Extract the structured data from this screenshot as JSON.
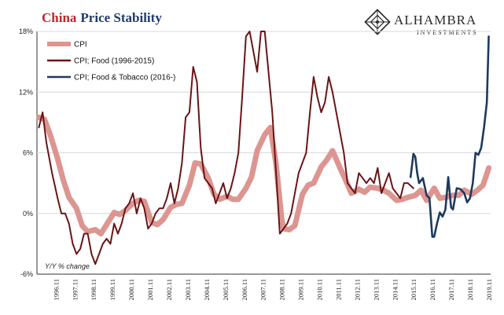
{
  "title": {
    "part1": "China",
    "part2": "Price Stability"
  },
  "brand": {
    "name": "ALHAMBRA",
    "sub": "INVESTMENTS"
  },
  "colors": {
    "cpi": "#dc9590",
    "food": "#6b1416",
    "foodtobacco": "#1c3a5e",
    "title_red": "#c0262c",
    "title_blue": "#1f3b6e"
  },
  "chart_data": {
    "type": "line",
    "ylabel_note": "Y/Y % change",
    "ylim": [
      -6,
      18
    ],
    "y_ticks": [
      "18%",
      "12%",
      "6%",
      "0%",
      "-6%"
    ],
    "y_tick_values": [
      18,
      12,
      6,
      0,
      -6
    ],
    "x_tick_labels": [
      "1996.11",
      "1997.11",
      "1998.11",
      "1999.11",
      "2000.11",
      "2001.11",
      "2002.11",
      "2003.11",
      "2004.11",
      "2005.11",
      "2006.11",
      "2007.11",
      "2008.11",
      "2009.11",
      "2010.11",
      "2011.11",
      "2012.11",
      "2013.11",
      "2014.11",
      "2015.11",
      "2016.11",
      "2017.11",
      "2018.11",
      "2019.11"
    ],
    "x_tick_values": [
      1996.917,
      1997.917,
      1998.917,
      1999.917,
      2000.917,
      2001.917,
      2002.917,
      2003.917,
      2004.917,
      2005.917,
      2006.917,
      2007.917,
      2008.917,
      2009.917,
      2010.917,
      2011.917,
      2012.917,
      2013.917,
      2014.917,
      2015.917,
      2016.917,
      2017.917,
      2018.917,
      2019.917
    ],
    "xlim": [
      1995.9,
      2020.0
    ],
    "legend": [
      {
        "label": "CPI",
        "key": "cpi"
      },
      {
        "label": "CPI; Food (1996-2015)",
        "key": "food"
      },
      {
        "label": "CPI; Food & Tobacco (2016-)",
        "key": "foodtobacco"
      }
    ],
    "series": [
      {
        "name": "CPI",
        "key": "cpi",
        "x": [
          1996.0,
          1996.3,
          1996.6,
          1997.0,
          1997.3,
          1997.6,
          1998.0,
          1998.3,
          1998.6,
          1999.0,
          1999.3,
          1999.6,
          2000.0,
          2000.3,
          2000.6,
          2001.0,
          2001.3,
          2001.6,
          2002.0,
          2002.3,
          2002.6,
          2003.0,
          2003.3,
          2003.6,
          2004.0,
          2004.3,
          2004.6,
          2005.0,
          2005.3,
          2005.6,
          2006.0,
          2006.3,
          2006.6,
          2007.0,
          2007.3,
          2007.6,
          2008.0,
          2008.3,
          2008.6,
          2008.9,
          2009.0,
          2009.3,
          2009.6,
          2010.0,
          2010.3,
          2010.6,
          2011.0,
          2011.3,
          2011.6,
          2012.0,
          2012.3,
          2012.6,
          2013.0,
          2013.3,
          2013.6,
          2014.0,
          2014.3,
          2014.6,
          2015.0,
          2015.3,
          2015.6,
          2016.0,
          2016.3,
          2016.6,
          2017.0,
          2017.3,
          2017.6,
          2018.0,
          2018.3,
          2018.6,
          2019.0,
          2019.3,
          2019.6,
          2019.9
        ],
        "y": [
          9.5,
          9.3,
          7.8,
          5.4,
          3.3,
          1.6,
          0.5,
          -1.2,
          -1.8,
          -1.6,
          -2.0,
          -1.1,
          0.1,
          -0.1,
          0.3,
          1.0,
          1.3,
          1.2,
          -0.9,
          -1.1,
          -0.6,
          0.6,
          0.9,
          1.0,
          2.8,
          5.0,
          4.9,
          3.5,
          1.9,
          1.4,
          1.7,
          1.4,
          1.4,
          2.5,
          3.6,
          6.2,
          7.8,
          8.5,
          4.9,
          -0.5,
          -1.5,
          -1.6,
          -1.2,
          1.9,
          2.8,
          3.0,
          4.6,
          5.3,
          6.2,
          4.5,
          3.3,
          2.0,
          2.4,
          2.1,
          2.6,
          2.5,
          2.3,
          2.0,
          1.3,
          1.4,
          1.6,
          1.8,
          2.3,
          1.3,
          2.5,
          1.5,
          1.6,
          1.8,
          1.8,
          2.3,
          1.9,
          2.3,
          2.8,
          4.5
        ]
      },
      {
        "name": "CPI; Food (1996-2015)",
        "key": "food",
        "x": [
          1996.0,
          1996.2,
          1996.4,
          1996.7,
          1997.0,
          1997.2,
          1997.4,
          1997.6,
          1997.8,
          1998.0,
          1998.2,
          1998.4,
          1998.6,
          1998.8,
          1999.0,
          1999.2,
          1999.4,
          1999.6,
          1999.8,
          2000.0,
          2000.2,
          2000.4,
          2000.6,
          2000.8,
          2001.0,
          2001.2,
          2001.4,
          2001.6,
          2001.8,
          2002.0,
          2002.2,
          2002.4,
          2002.6,
          2002.8,
          2003.0,
          2003.2,
          2003.4,
          2003.6,
          2003.8,
          2004.0,
          2004.2,
          2004.4,
          2004.6,
          2004.8,
          2005.0,
          2005.2,
          2005.4,
          2005.6,
          2005.8,
          2006.0,
          2006.2,
          2006.4,
          2006.6,
          2006.8,
          2007.0,
          2007.2,
          2007.4,
          2007.6,
          2007.8,
          2008.0,
          2008.2,
          2008.4,
          2008.6,
          2008.8,
          2009.0,
          2009.2,
          2009.4,
          2009.6,
          2009.8,
          2010.0,
          2010.2,
          2010.4,
          2010.6,
          2010.8,
          2011.0,
          2011.2,
          2011.4,
          2011.6,
          2011.8,
          2012.0,
          2012.2,
          2012.4,
          2012.6,
          2012.8,
          2013.0,
          2013.2,
          2013.4,
          2013.6,
          2013.8,
          2014.0,
          2014.2,
          2014.4,
          2014.6,
          2014.8,
          2015.0,
          2015.2,
          2015.4,
          2015.6,
          2015.9
        ],
        "y": [
          8.5,
          10.0,
          7.0,
          4.0,
          1.5,
          0.0,
          0.0,
          -1.0,
          -3.0,
          -4.0,
          -3.5,
          -2.0,
          -2.0,
          -4.0,
          -5.0,
          -4.0,
          -3.0,
          -2.5,
          -3.0,
          -1.0,
          -2.0,
          -1.0,
          0.5,
          1.0,
          2.0,
          0.0,
          1.5,
          0.5,
          -1.5,
          -1.0,
          0.0,
          0.5,
          0.5,
          1.5,
          3.0,
          1.0,
          2.5,
          5.0,
          9.5,
          10.0,
          14.5,
          13.0,
          6.5,
          3.5,
          3.0,
          2.5,
          1.0,
          2.0,
          3.0,
          1.5,
          2.5,
          4.0,
          6.0,
          11.5,
          17.5,
          18.0,
          16.0,
          14.0,
          18.0,
          20.0,
          14.0,
          10.0,
          4.0,
          -2.0,
          -1.5,
          -1.0,
          0.0,
          2.0,
          4.0,
          5.0,
          6.0,
          10.0,
          13.5,
          11.5,
          10.0,
          11.0,
          13.5,
          12.0,
          10.0,
          8.0,
          6.0,
          3.0,
          2.5,
          2.0,
          4.0,
          3.5,
          3.0,
          3.5,
          3.0,
          4.5,
          2.0,
          3.0,
          4.0,
          2.5,
          2.0,
          1.5,
          3.0,
          3.0,
          2.5
        ]
      },
      {
        "name": "CPI; Food & Tobacco (2016-)",
        "key": "foodtobacco",
        "x": [
          2015.75,
          2015.9,
          2016.0,
          2016.1,
          2016.2,
          2016.4,
          2016.6,
          2016.75,
          2016.9,
          2017.0,
          2017.15,
          2017.3,
          2017.45,
          2017.6,
          2017.75,
          2017.9,
          2018.0,
          2018.2,
          2018.4,
          2018.6,
          2018.75,
          2018.9,
          2019.05,
          2019.2,
          2019.35,
          2019.5,
          2019.65,
          2019.8,
          2019.9
        ],
        "y": [
          3.6,
          5.9,
          5.6,
          4.0,
          3.0,
          3.5,
          1.8,
          1.5,
          -2.3,
          -2.3,
          -1.0,
          0.1,
          -0.3,
          0.4,
          3.6,
          0.6,
          0.4,
          2.5,
          2.4,
          2.0,
          1.1,
          1.5,
          3.0,
          6.0,
          5.8,
          6.5,
          8.5,
          11.0,
          17.5
        ]
      }
    ]
  }
}
